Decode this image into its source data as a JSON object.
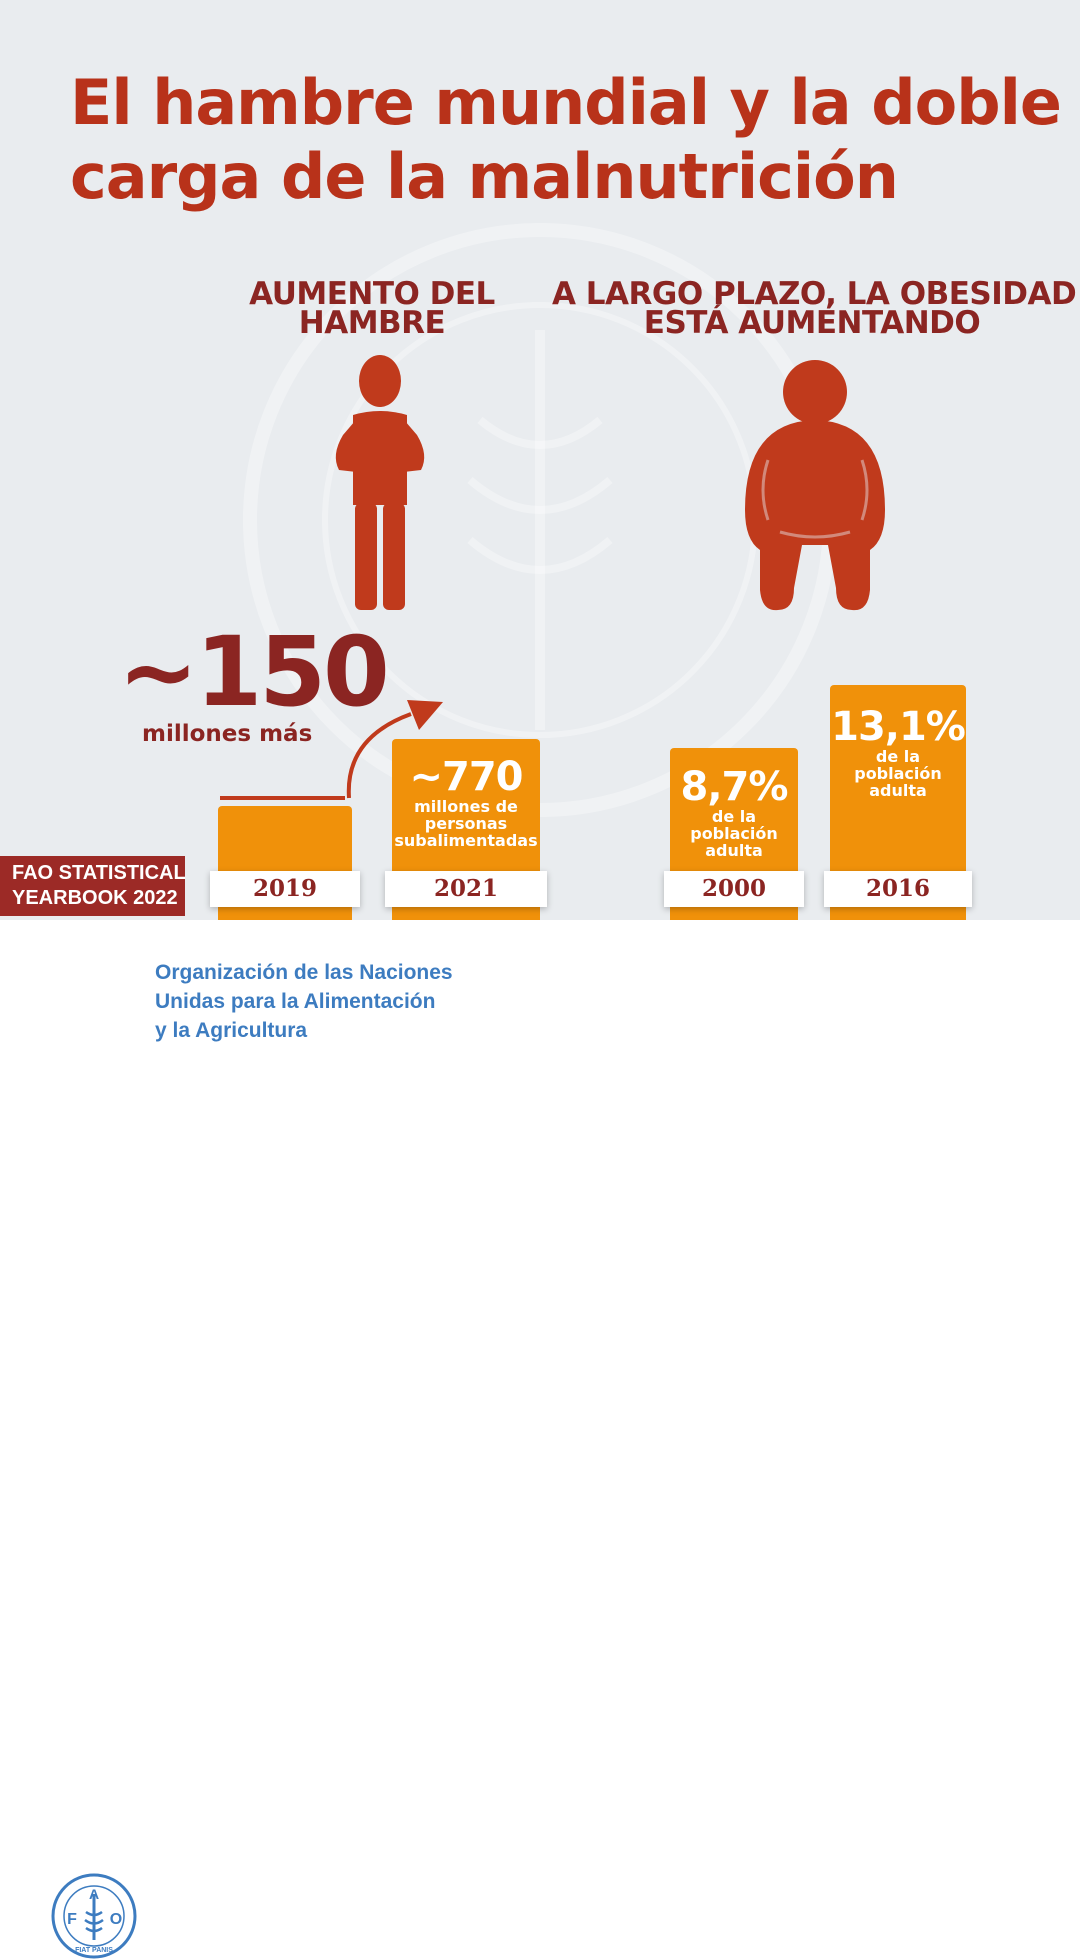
{
  "title": {
    "line1": "El hambre mundial y la doble",
    "line2": "carga de la malnutrición"
  },
  "hunger": {
    "heading_line1": "AUMENTO DEL",
    "heading_line2": "HAMBRE",
    "increase_value": "~150",
    "increase_label": "millones más",
    "bars": [
      {
        "year": "2019"
      },
      {
        "year": "2021",
        "value": "~770",
        "desc_line1": "millones de",
        "desc_line2": "personas",
        "desc_line3": "subalimentadas"
      }
    ]
  },
  "obesity": {
    "heading_line1": "A LARGO PLAZO, LA OBESIDAD",
    "heading_line2": "ESTÁ AUMENTANDO",
    "bars": [
      {
        "year": "2000",
        "value": "8,7%",
        "desc_line1": "de la",
        "desc_line2": "población",
        "desc_line3": "adulta"
      },
      {
        "year": "2016",
        "value": "13,1%",
        "desc_line1": "de la",
        "desc_line2": "población",
        "desc_line3": "adulta"
      }
    ]
  },
  "badge": {
    "line1": "FAO STATISTICAL",
    "line2": "YEARBOOK 2022"
  },
  "footer": {
    "org_line1": "Organización de las Naciones",
    "org_line2": "Unidas para la Alimentación",
    "org_line3": "y la Agricultura",
    "logo_letters": [
      "F",
      "A",
      "O"
    ],
    "logo_motto": "FIAT PANIS"
  },
  "colors": {
    "title": "#b8321a",
    "heading": "#8b2522",
    "figure": "#c03a1c",
    "bar": "#f0910a",
    "badge": "#9c2a26",
    "fao_blue": "#3d7cc0",
    "background": "#e9ecef"
  }
}
